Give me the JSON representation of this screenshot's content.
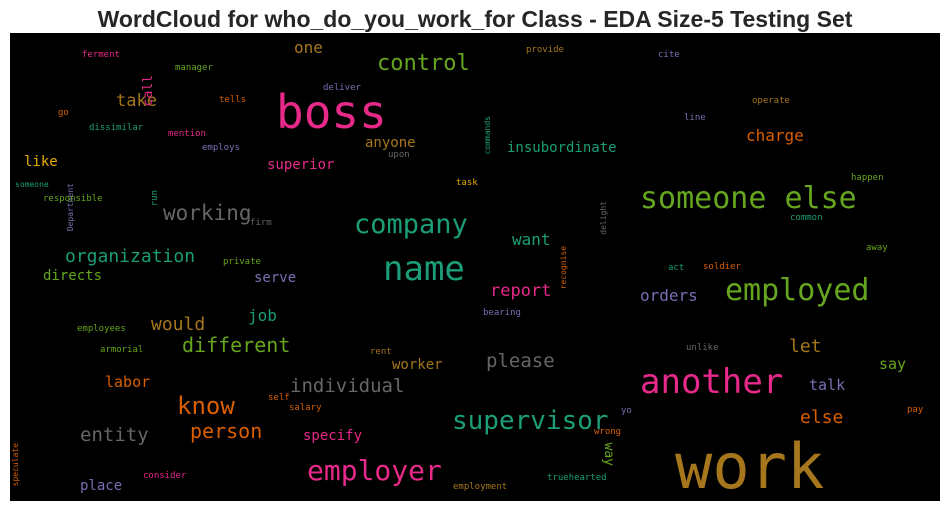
{
  "chart_data": {
    "type": "wordcloud",
    "title": "WordCloud for who_do_you_work_for Class - EDA Size-5 Testing Set",
    "background": "#000000",
    "palette": "Dark2",
    "words": [
      {
        "text": "work",
        "color": "#a6761d"
      },
      {
        "text": "boss",
        "color": "#e7298a"
      },
      {
        "text": "name",
        "color": "#1b9e77"
      },
      {
        "text": "another",
        "color": "#e7298a"
      },
      {
        "text": "someone else",
        "color": "#66a61e"
      },
      {
        "text": "employed",
        "color": "#66a61e"
      },
      {
        "text": "employer",
        "color": "#e7298a"
      },
      {
        "text": "supervisor",
        "color": "#1b9e77"
      },
      {
        "text": "company",
        "color": "#1b9e77"
      },
      {
        "text": "control",
        "color": "#66a61e"
      },
      {
        "text": "know",
        "color": "#d95f02"
      },
      {
        "text": "working",
        "color": "#666666"
      },
      {
        "text": "different",
        "color": "#66a61e"
      },
      {
        "text": "organization",
        "color": "#1b9e77"
      },
      {
        "text": "person",
        "color": "#d95f02"
      },
      {
        "text": "individual",
        "color": "#666666"
      },
      {
        "text": "entity",
        "color": "#666666"
      },
      {
        "text": "please",
        "color": "#666666"
      },
      {
        "text": "would",
        "color": "#a6761d"
      },
      {
        "text": "take",
        "color": "#a6761d"
      },
      {
        "text": "report",
        "color": "#e7298a"
      },
      {
        "text": "orders",
        "color": "#7570b3"
      },
      {
        "text": "charge",
        "color": "#d95f02"
      },
      {
        "text": "let",
        "color": "#a6761d"
      },
      {
        "text": "else",
        "color": "#d95f02"
      },
      {
        "text": "want",
        "color": "#1b9e77"
      },
      {
        "text": "job",
        "color": "#1b9e77"
      },
      {
        "text": "one",
        "color": "#a6761d"
      },
      {
        "text": "insubordinate",
        "color": "#1b9e77"
      },
      {
        "text": "superior",
        "color": "#e7298a"
      },
      {
        "text": "anyone",
        "color": "#a6761d"
      },
      {
        "text": "labor",
        "color": "#d95f02"
      },
      {
        "text": "specify",
        "color": "#e7298a"
      },
      {
        "text": "talk",
        "color": "#7570b3"
      },
      {
        "text": "say",
        "color": "#66a61e"
      },
      {
        "text": "serve",
        "color": "#7570b3"
      },
      {
        "text": "directs",
        "color": "#66a61e"
      },
      {
        "text": "like",
        "color": "#e6ab02"
      },
      {
        "text": "worker",
        "color": "#a6761d"
      },
      {
        "text": "place",
        "color": "#7570b3"
      },
      {
        "text": "call",
        "color": "#e7298a"
      },
      {
        "text": "way",
        "color": "#66a61e"
      },
      {
        "text": "ferment",
        "color": "#e7298a"
      },
      {
        "text": "manager",
        "color": "#66a61e"
      },
      {
        "text": "go",
        "color": "#d95f02"
      },
      {
        "text": "dissimilar",
        "color": "#1b9e77"
      },
      {
        "text": "Department",
        "color": "#7570b3"
      },
      {
        "text": "someone",
        "color": "#1b9e77"
      },
      {
        "text": "responsible",
        "color": "#66a61e"
      },
      {
        "text": "run",
        "color": "#1b9e77"
      },
      {
        "text": "mention",
        "color": "#e7298a"
      },
      {
        "text": "employs",
        "color": "#7570b3"
      },
      {
        "text": "tells",
        "color": "#d95f02"
      },
      {
        "text": "deliver",
        "color": "#7570b3"
      },
      {
        "text": "upon",
        "color": "#666666"
      },
      {
        "text": "firm",
        "color": "#666666"
      },
      {
        "text": "private",
        "color": "#66a61e"
      },
      {
        "text": "commands",
        "color": "#1b9e77"
      },
      {
        "text": "provide",
        "color": "#a6761d"
      },
      {
        "text": "cite",
        "color": "#7570b3"
      },
      {
        "text": "operate",
        "color": "#a6761d"
      },
      {
        "text": "line",
        "color": "#7570b3"
      },
      {
        "text": "happen",
        "color": "#66a61e"
      },
      {
        "text": "task",
        "color": "#e6ab02"
      },
      {
        "text": "delight",
        "color": "#666666"
      },
      {
        "text": "recognise",
        "color": "#d95f02"
      },
      {
        "text": "common",
        "color": "#1b9e77"
      },
      {
        "text": "away",
        "color": "#66a61e"
      },
      {
        "text": "act",
        "color": "#1b9e77"
      },
      {
        "text": "soldier",
        "color": "#d95f02"
      },
      {
        "text": "bearing",
        "color": "#7570b3"
      },
      {
        "text": "employees",
        "color": "#66a61e"
      },
      {
        "text": "armorial",
        "color": "#66a61e"
      },
      {
        "text": "rent",
        "color": "#a6761d"
      },
      {
        "text": "unlike",
        "color": "#666666"
      },
      {
        "text": "self",
        "color": "#d95f02"
      },
      {
        "text": "salary",
        "color": "#d95f02"
      },
      {
        "text": "speculate",
        "color": "#d95f02"
      },
      {
        "text": "consider",
        "color": "#e7298a"
      },
      {
        "text": "wrong",
        "color": "#d95f02"
      },
      {
        "text": "yo",
        "color": "#7570b3"
      },
      {
        "text": "pay",
        "color": "#d95f02"
      },
      {
        "text": "employment",
        "color": "#a6761d"
      },
      {
        "text": "truehearted",
        "color": "#1b9e77"
      }
    ]
  }
}
